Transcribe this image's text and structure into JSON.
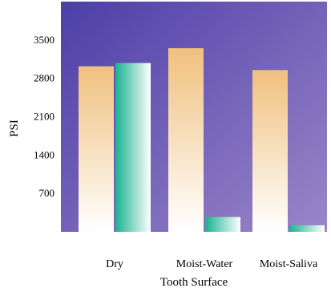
{
  "chart_data": {
    "type": "bar",
    "title": "",
    "xlabel": "Tooth Surface",
    "ylabel": "PSI",
    "categories": [
      "Dry",
      "Moist-Water",
      "Moist-Saliva"
    ],
    "series": [
      {
        "values": [
          3020,
          3350,
          2950
        ]
      },
      {
        "values": [
          3080,
          270,
          120
        ]
      }
    ],
    "ylim": [
      0,
      4200
    ],
    "yticks": [
      700,
      1400,
      2100,
      2800,
      3500
    ],
    "grid": false,
    "legend": "none"
  },
  "colors": {
    "plot_bg_top_left": "#4d3ea8",
    "plot_bg_bottom_right": "#9a86c8",
    "series1_top": "#f0c07e",
    "series1_bottom": "#ffffff",
    "series2_left": "#19b290",
    "series2_right": "#ffffff"
  }
}
